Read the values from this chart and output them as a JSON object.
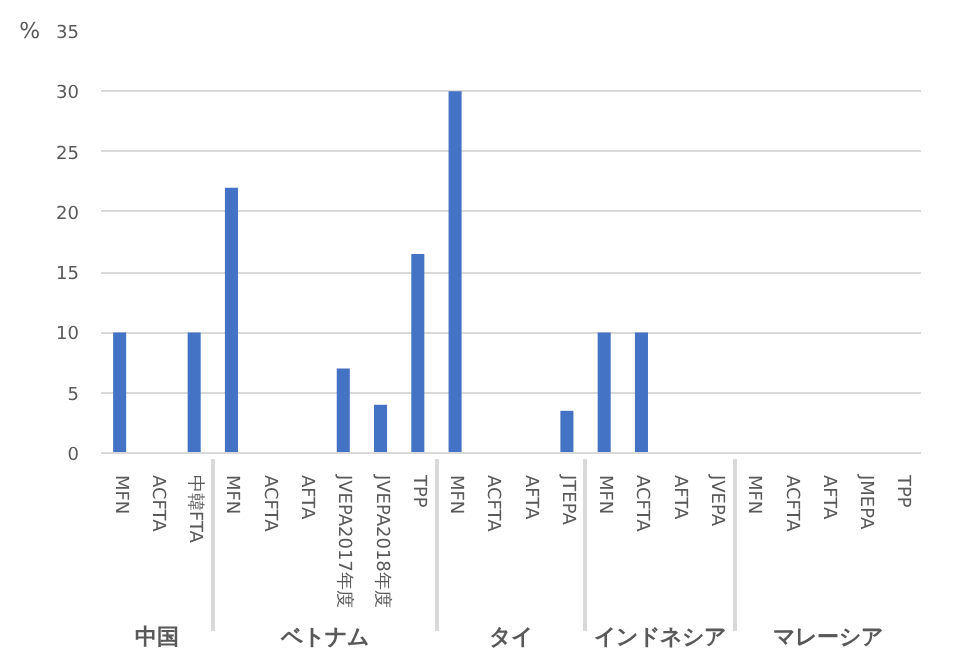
{
  "chart_data": {
    "type": "bar",
    "ylabel": "%",
    "categories": [
      "MFN",
      "ACFTA",
      "中韓FTA",
      "MFN",
      "ACFTA",
      "AFTA",
      "JVEPA2017年度",
      "JVEPA2018年度",
      "TPP",
      "MFN",
      "ACFTA",
      "AFTA",
      "JTEPA",
      "MFN",
      "ACFTA",
      "AFTA",
      "JVEPA",
      "MFN",
      "ACFTA",
      "AFTA",
      "JMEPA",
      "TPP"
    ],
    "values": [
      10,
      0,
      10,
      22,
      0,
      0,
      7,
      4,
      16.5,
      30,
      0,
      0,
      3.5,
      10,
      10,
      0,
      0,
      0,
      0,
      0,
      0,
      0
    ],
    "color": "#4472c4",
    "annotations": [
      "中国",
      "ベトナム",
      "タイ",
      "インドネシア",
      "マレーシア"
    ],
    "ylim": [
      0,
      35
    ],
    "yticks": [
      0,
      5,
      10,
      15,
      20,
      25,
      30,
      35
    ],
    "grid": "y"
  }
}
